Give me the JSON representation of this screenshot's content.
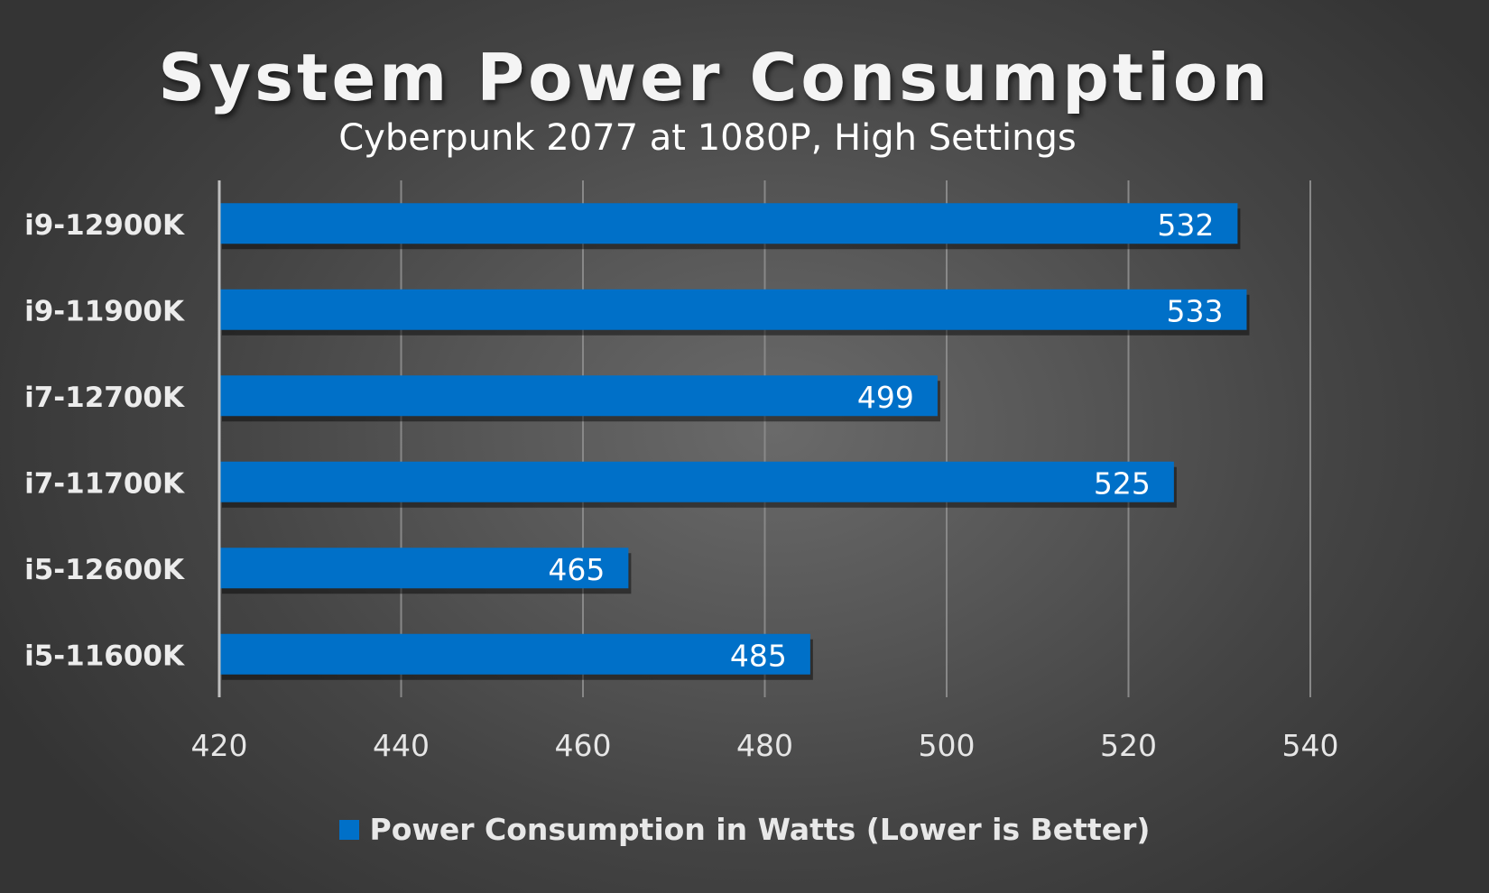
{
  "chart_data": {
    "type": "bar",
    "orientation": "horizontal",
    "title": "System Power Consumption",
    "subtitle": "Cyberpunk 2077 at 1080P, High Settings",
    "categories": [
      "i9-12900K",
      "i9-11900K",
      "i7-12700K",
      "i7-11700K",
      "i5-12600K",
      "i5-11600K"
    ],
    "series": [
      {
        "name": "Power Consumption in Watts (Lower is Better)",
        "values": [
          532,
          533,
          499,
          525,
          465,
          485
        ],
        "color": "#0070c8"
      }
    ],
    "xlim": [
      420,
      540
    ],
    "xticks": [
      420,
      440,
      460,
      480,
      500,
      520,
      540
    ],
    "data_labels": true,
    "grid": "vertical",
    "legend_position": "bottom"
  }
}
